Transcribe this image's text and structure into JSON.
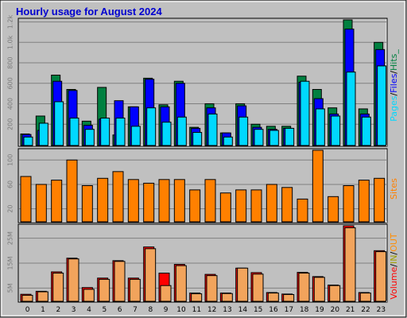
{
  "title": "Hourly usage for August 2024",
  "colors": {
    "background": "#c0c0c0",
    "pages": "#00d8ff",
    "files": "#0000ff",
    "hits": "#008040",
    "visits": "#ff8000",
    "volume": "#ff0000",
    "volume_in": "#ff8c00",
    "volume_out": "#f2a45c"
  },
  "chart_data": [
    {
      "type": "bar",
      "panel": "pages-files-hits",
      "legend": {
        "pages": "Pages",
        "sep1": "/",
        "files": "Files",
        "sep2": "/",
        "hits": "Hits_"
      },
      "categories": [
        "0",
        "1",
        "2",
        "3",
        "4",
        "5",
        "6",
        "7",
        "8",
        "9",
        "10",
        "11",
        "12",
        "13",
        "14",
        "15",
        "16",
        "17",
        "18",
        "19",
        "20",
        "21",
        "22",
        "23"
      ],
      "ytick_labels": [
        "200",
        "400",
        "600",
        "800",
        "1.0k",
        "1.2k"
      ],
      "ytick_values": [
        200,
        400,
        600,
        800,
        1000,
        1200
      ],
      "ylim": [
        0,
        1220
      ],
      "series": [
        {
          "name": "Hits",
          "values": [
            105,
            280,
            680,
            540,
            230,
            560,
            95,
            370,
            650,
            390,
            620,
            170,
            400,
            115,
            400,
            200,
            180,
            180,
            670,
            540,
            360,
            1220,
            350,
            1000
          ]
        },
        {
          "name": "Files",
          "values": [
            100,
            140,
            620,
            530,
            190,
            250,
            430,
            370,
            640,
            370,
            600,
            160,
            360,
            115,
            380,
            170,
            150,
            160,
            610,
            450,
            300,
            1130,
            300,
            930
          ]
        },
        {
          "name": "Pages",
          "values": [
            75,
            210,
            420,
            260,
            150,
            260,
            260,
            180,
            360,
            220,
            270,
            120,
            300,
            75,
            270,
            150,
            140,
            160,
            620,
            350,
            280,
            710,
            270,
            770
          ]
        }
      ]
    },
    {
      "type": "bar",
      "panel": "sites",
      "legend": {
        "sites": "Sites"
      },
      "categories": [
        "0",
        "1",
        "2",
        "3",
        "4",
        "5",
        "6",
        "7",
        "8",
        "9",
        "10",
        "11",
        "12",
        "13",
        "14",
        "15",
        "16",
        "17",
        "18",
        "19",
        "20",
        "21",
        "22",
        "23"
      ],
      "ytick_labels": [
        "20",
        "60",
        "100"
      ],
      "ytick_values": [
        20,
        60,
        100
      ],
      "ylim": [
        0,
        116
      ],
      "series": [
        {
          "name": "Sites",
          "values": [
            73,
            60,
            67,
            100,
            58,
            70,
            81,
            68,
            62,
            68,
            68,
            51,
            68,
            46,
            51,
            51,
            60,
            55,
            36,
            116,
            40,
            58,
            67,
            70
          ]
        }
      ]
    },
    {
      "type": "bar",
      "panel": "volume",
      "legend": {
        "volume": "Volume",
        "sep1": "/",
        "in": "IN",
        "sep2": "/",
        "out": "OUT"
      },
      "categories": [
        "0",
        "1",
        "2",
        "3",
        "4",
        "5",
        "6",
        "7",
        "8",
        "9",
        "10",
        "11",
        "12",
        "13",
        "14",
        "15",
        "16",
        "17",
        "18",
        "19",
        "20",
        "21",
        "22",
        "23"
      ],
      "ytick_labels": [
        "5M",
        "15M",
        "25M"
      ],
      "ytick_values": [
        5000000,
        15000000,
        25000000
      ],
      "ylim": [
        0,
        30000000
      ],
      "series": [
        {
          "name": "Volume",
          "values": [
            2500000,
            3700000,
            11500000,
            17000000,
            5200000,
            9000000,
            16000000,
            9000000,
            21500000,
            11000000,
            14500000,
            3000000,
            10500000,
            3000000,
            13000000,
            11200000,
            3200000,
            2600000,
            11300000,
            9600000,
            6200000,
            30000000,
            3200000,
            20000000
          ]
        },
        {
          "name": "OUT",
          "values": [
            2100000,
            3500000,
            11000000,
            16700000,
            4500000,
            8500000,
            15700000,
            8500000,
            20800000,
            6000000,
            14000000,
            2700000,
            10000000,
            2800000,
            13000000,
            10600000,
            3000000,
            2400000,
            11000000,
            9300000,
            6000000,
            29200000,
            3000000,
            19600000
          ]
        }
      ]
    }
  ]
}
